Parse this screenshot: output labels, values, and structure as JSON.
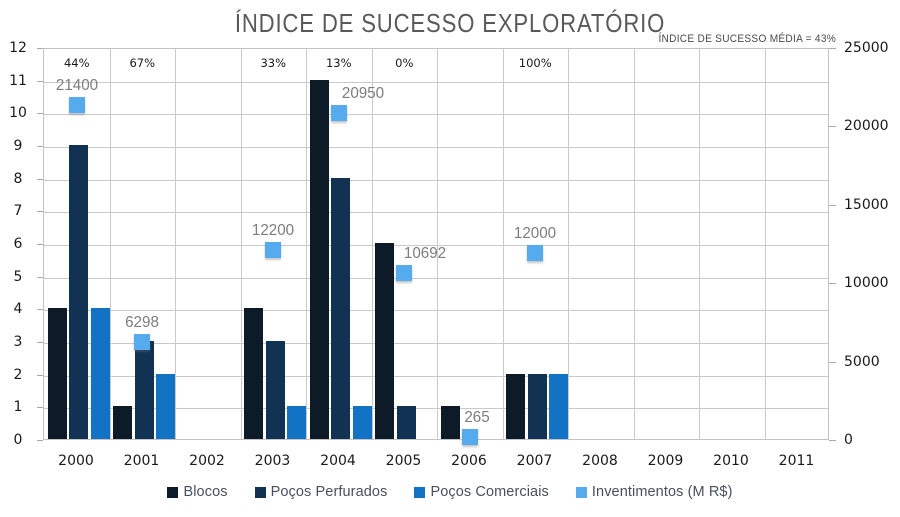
{
  "title": "ÍNDICE DE SUCESSO EXPLORATÓRIO",
  "annotation": "ÍNDICE DE SUCESSO MÉDIA = 43%",
  "colors": {
    "blocos": "#0d1a27",
    "pocos_perfurados": "#113252",
    "pocos_comerciais": "#1273c4",
    "investimentos": "#55abee",
    "grid": "#c9c9c9",
    "title_text": "#595959",
    "data_label_text": "#7d7d7d",
    "axis_text": "#1a1a1a",
    "legend_text": "#47505c"
  },
  "chart_data": {
    "type": "combo-bar-scatter",
    "title": "ÍNDICE DE SUCESSO EXPLORATÓRIO",
    "annotation": "ÍNDICE DE SUCESSO MÉDIA = 43%",
    "categories": [
      "2000",
      "2001",
      "2002",
      "2003",
      "2004",
      "2005",
      "2006",
      "2007",
      "2008",
      "2009",
      "2010",
      "2011"
    ],
    "success_rate_labels": [
      "44%",
      "67%",
      "",
      "33%",
      "13%",
      "0%",
      "",
      "100%",
      "",
      "",
      "",
      ""
    ],
    "left_axis": {
      "min": 0,
      "max": 12,
      "tick_step": 1,
      "ticks": [
        0,
        1,
        2,
        3,
        4,
        5,
        6,
        7,
        8,
        9,
        10,
        11,
        12
      ]
    },
    "right_axis": {
      "min": 0,
      "max": 25000,
      "tick_step": 5000,
      "ticks": [
        0,
        5000,
        10000,
        15000,
        20000,
        25000
      ]
    },
    "grid": "both",
    "legend_position": "bottom",
    "series": [
      {
        "name": "Blocos",
        "type": "bar",
        "axis": "left",
        "color_key": "blocos",
        "values": [
          4,
          1,
          null,
          4,
          11,
          6,
          1,
          2,
          null,
          null,
          null,
          null
        ]
      },
      {
        "name": "Poços Perfurados",
        "type": "bar",
        "axis": "left",
        "color_key": "pocos_perfurados",
        "values": [
          9,
          3,
          null,
          3,
          8,
          1,
          null,
          2,
          null,
          null,
          null,
          null
        ]
      },
      {
        "name": "Poços Comerciais",
        "type": "bar",
        "axis": "left",
        "color_key": "pocos_comerciais",
        "values": [
          4,
          2,
          null,
          1,
          1,
          null,
          null,
          2,
          null,
          null,
          null,
          null
        ]
      },
      {
        "name": "Inventimentos (M R$)",
        "type": "scatter",
        "axis": "right",
        "color_key": "investimentos",
        "values": [
          21400,
          6298,
          null,
          12200,
          20950,
          10692,
          265,
          12000,
          null,
          null,
          null,
          null
        ],
        "point_labels": [
          "21400",
          "6298",
          "",
          "12200",
          "20950",
          "10692",
          "265",
          "12000",
          "",
          "",
          "",
          ""
        ]
      }
    ]
  }
}
